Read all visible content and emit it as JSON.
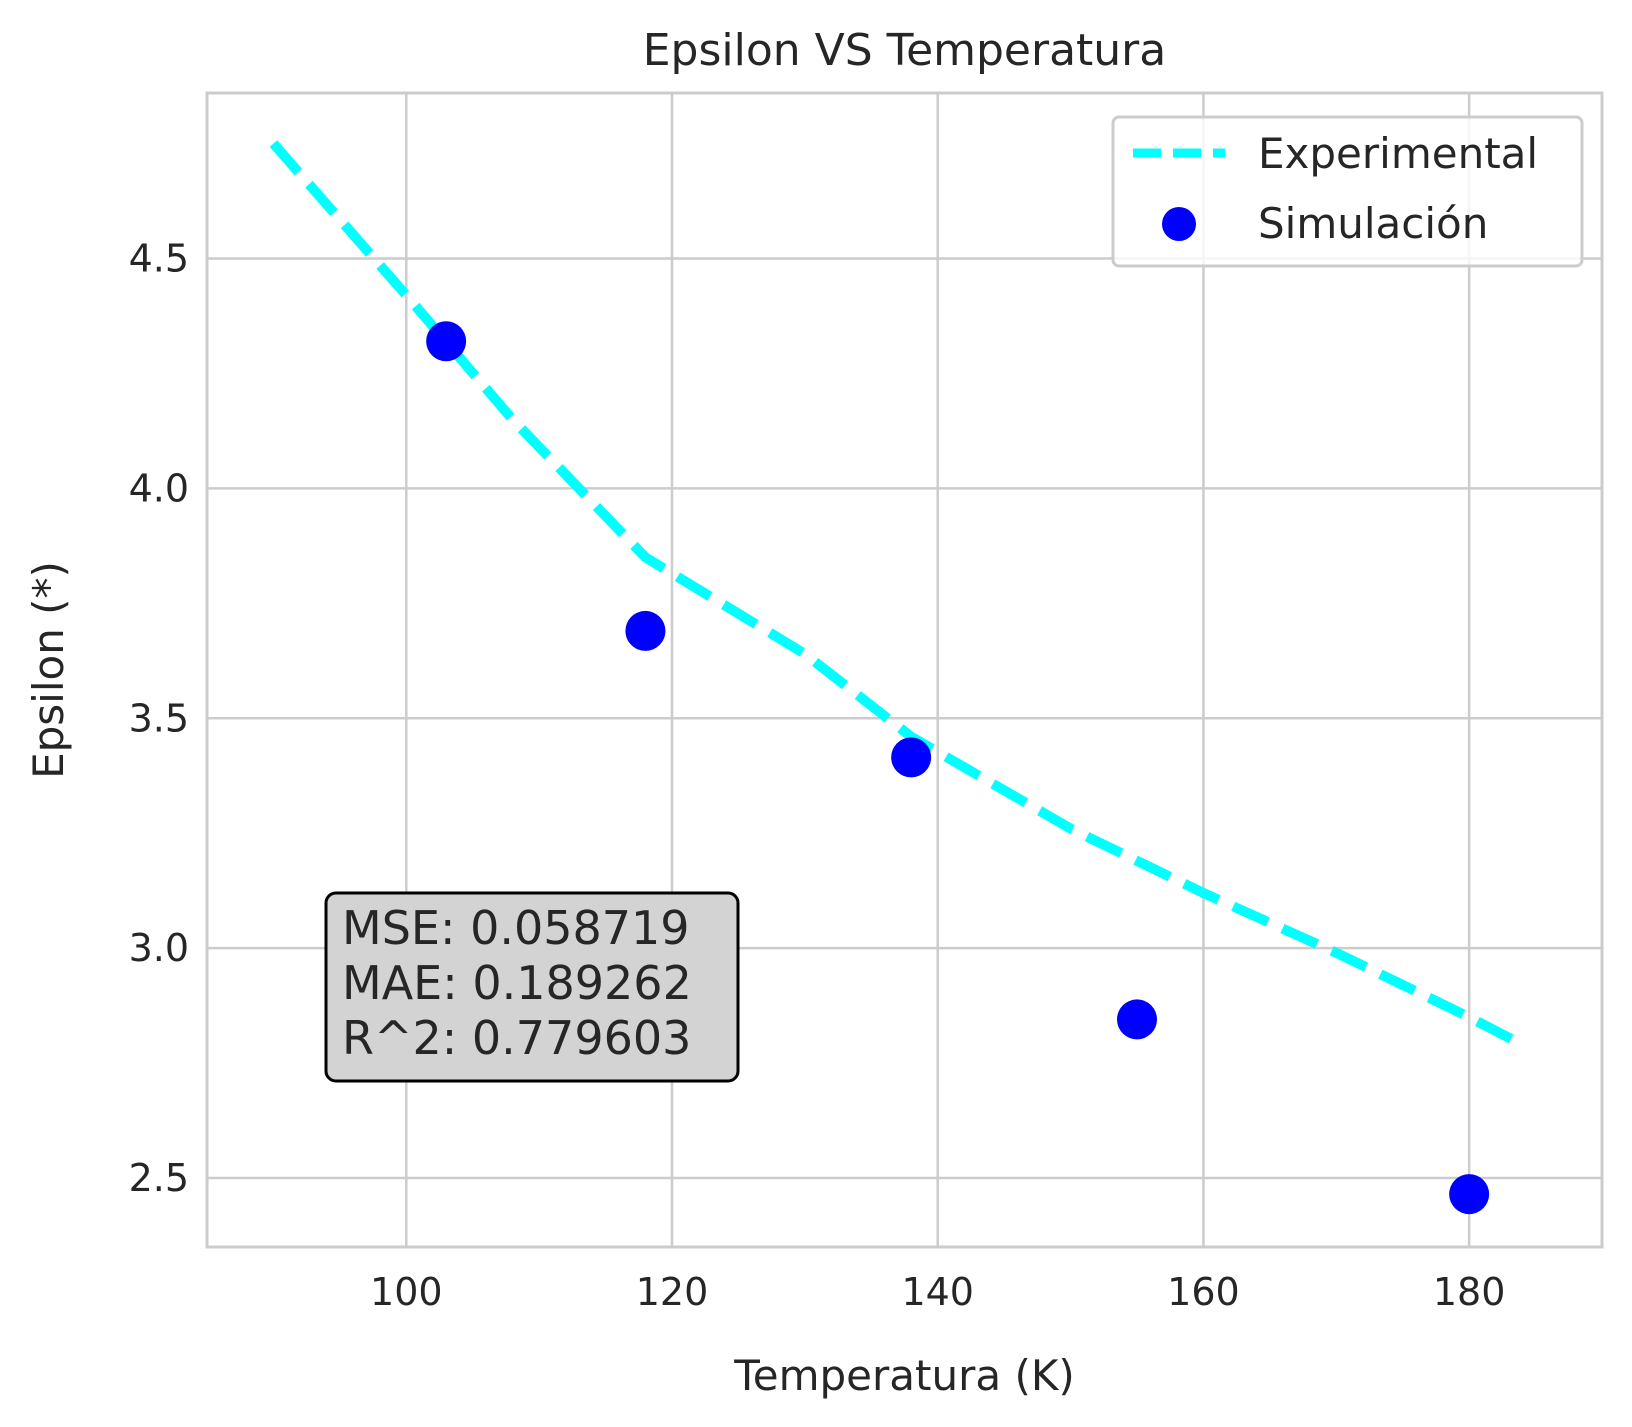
{
  "chart_data": {
    "type": "line",
    "title": "Epsilon VS Temperatura",
    "xlabel": "Temperatura (K)",
    "ylabel": "Epsilon (*)",
    "xlim": [
      85,
      190
    ],
    "ylim": [
      2.35,
      4.86
    ],
    "xticks": [
      100,
      120,
      140,
      160,
      180
    ],
    "yticks": [
      2.5,
      3.0,
      3.5,
      4.0,
      4.5
    ],
    "xtick_labels": [
      "100",
      "120",
      "140",
      "160",
      "180"
    ],
    "ytick_labels": [
      "2.5",
      "3.0",
      "3.5",
      "4.0",
      "4.5"
    ],
    "grid": true,
    "legend_position": "top-right",
    "series": [
      {
        "name": "Experimental",
        "type": "line",
        "style": "dashed",
        "color": "#00ffff",
        "x": [
          90,
          100,
          108,
          118,
          130,
          138,
          150,
          160,
          170,
          180,
          184
        ],
        "y": [
          4.75,
          4.42,
          4.15,
          3.85,
          3.64,
          3.46,
          3.26,
          3.12,
          2.99,
          2.85,
          2.79
        ]
      },
      {
        "name": "Simulación",
        "type": "scatter",
        "color": "#0000ff",
        "x": [
          103,
          118,
          138,
          155,
          180
        ],
        "y": [
          4.32,
          3.69,
          3.415,
          2.845,
          2.465
        ]
      }
    ],
    "annotation": {
      "lines": [
        "MSE: 0.058719",
        "MAE: 0.189262",
        "R^2: 0.779603"
      ],
      "background": "#d3d3d3"
    }
  }
}
